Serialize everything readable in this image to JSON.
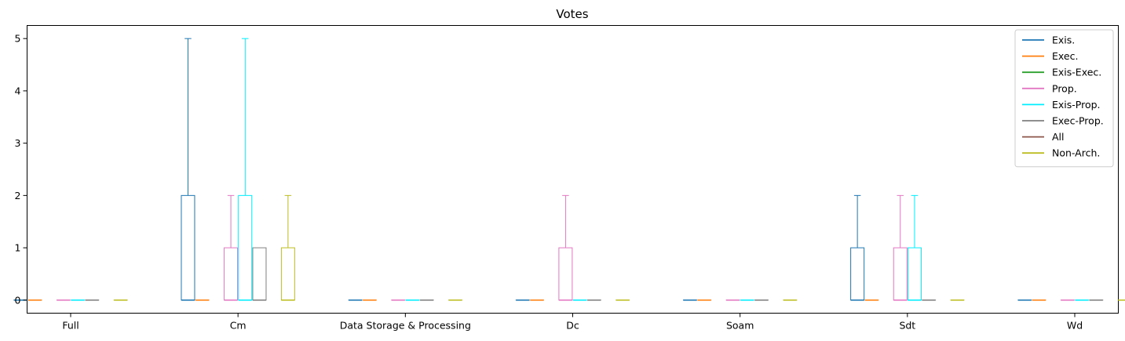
{
  "chart_data": {
    "type": "boxplot",
    "title": "Votes",
    "xlabel": "",
    "ylabel": "",
    "categories": [
      "Full",
      "Cm",
      "Data Storage & Processing",
      "Dc",
      "Soam",
      "Sdt",
      "Wd"
    ],
    "ylim": [
      -0.25,
      5.25
    ],
    "yticks": [
      0,
      1,
      2,
      3,
      4,
      5
    ],
    "grid": false,
    "legend_position": "top-right",
    "series": [
      {
        "name": "Exis.",
        "color": "#1f77b4",
        "boxes": [
          {
            "min": 0,
            "q1": 0,
            "median": 0,
            "q3": 0,
            "max": 0
          },
          {
            "min": 0,
            "q1": 0,
            "median": 0,
            "q3": 2,
            "max": 5
          },
          {
            "min": 0,
            "q1": 0,
            "median": 0,
            "q3": 0,
            "max": 0
          },
          {
            "min": 0,
            "q1": 0,
            "median": 0,
            "q3": 0,
            "max": 0
          },
          {
            "min": 0,
            "q1": 0,
            "median": 0,
            "q3": 0,
            "max": 0
          },
          {
            "min": 0,
            "q1": 0,
            "median": 0,
            "q3": 1,
            "max": 2
          },
          {
            "min": 0,
            "q1": 0,
            "median": 0,
            "q3": 0,
            "max": 0
          }
        ]
      },
      {
        "name": "Exec.",
        "color": "#ff7f0e",
        "boxes": [
          {
            "min": 0,
            "q1": 0,
            "median": 0,
            "q3": 0,
            "max": 0
          },
          {
            "min": 0,
            "q1": 0,
            "median": 0,
            "q3": 0,
            "max": 0
          },
          {
            "min": 0,
            "q1": 0,
            "median": 0,
            "q3": 0,
            "max": 0
          },
          {
            "min": 0,
            "q1": 0,
            "median": 0,
            "q3": 0,
            "max": 0
          },
          {
            "min": 0,
            "q1": 0,
            "median": 0,
            "q3": 0,
            "max": 0
          },
          {
            "min": 0,
            "q1": 0,
            "median": 0,
            "q3": 0,
            "max": 0
          },
          {
            "min": 0,
            "q1": 0,
            "median": 0,
            "q3": 0,
            "max": 0
          }
        ]
      },
      {
        "name": "Exis-Exec.",
        "color": "#2ca02c",
        "boxes": []
      },
      {
        "name": "Prop.",
        "color": "#e377c2",
        "boxes": [
          {
            "min": 0,
            "q1": 0,
            "median": 0,
            "q3": 0,
            "max": 0
          },
          {
            "min": 0,
            "q1": 0,
            "median": 0,
            "q3": 1,
            "max": 2
          },
          {
            "min": 0,
            "q1": 0,
            "median": 0,
            "q3": 0,
            "max": 0
          },
          {
            "min": 0,
            "q1": 0,
            "median": 0,
            "q3": 1,
            "max": 2
          },
          {
            "min": 0,
            "q1": 0,
            "median": 0,
            "q3": 0,
            "max": 0
          },
          {
            "min": 0,
            "q1": 0,
            "median": 0,
            "q3": 1,
            "max": 2
          },
          {
            "min": 0,
            "q1": 0,
            "median": 0,
            "q3": 0,
            "max": 0
          }
        ]
      },
      {
        "name": "Exis-Prop.",
        "color": "#00eeff",
        "boxes": [
          {
            "min": 0,
            "q1": 0,
            "median": 0,
            "q3": 0,
            "max": 0
          },
          {
            "min": 0,
            "q1": 0,
            "median": 0,
            "q3": 2,
            "max": 5
          },
          {
            "min": 0,
            "q1": 0,
            "median": 0,
            "q3": 0,
            "max": 0
          },
          {
            "min": 0,
            "q1": 0,
            "median": 0,
            "q3": 0,
            "max": 0
          },
          {
            "min": 0,
            "q1": 0,
            "median": 0,
            "q3": 0,
            "max": 0
          },
          {
            "min": 0,
            "q1": 0,
            "median": 0,
            "q3": 1,
            "max": 2
          },
          {
            "min": 0,
            "q1": 0,
            "median": 0,
            "q3": 0,
            "max": 0
          }
        ]
      },
      {
        "name": "Exec-Prop.",
        "color": "#7f7f7f",
        "boxes": [
          {
            "min": 0,
            "q1": 0,
            "median": 0,
            "q3": 0,
            "max": 0
          },
          {
            "min": 0,
            "q1": 0,
            "median": 0,
            "q3": 1,
            "max": 1
          },
          {
            "min": 0,
            "q1": 0,
            "median": 0,
            "q3": 0,
            "max": 0
          },
          {
            "min": 0,
            "q1": 0,
            "median": 0,
            "q3": 0,
            "max": 0
          },
          {
            "min": 0,
            "q1": 0,
            "median": 0,
            "q3": 0,
            "max": 0
          },
          {
            "min": 0,
            "q1": 0,
            "median": 0,
            "q3": 0,
            "max": 0
          },
          {
            "min": 0,
            "q1": 0,
            "median": 0,
            "q3": 0,
            "max": 0
          }
        ]
      },
      {
        "name": "All",
        "color": "#8c564b",
        "boxes": []
      },
      {
        "name": "Non-Arch.",
        "color": "#bcbd22",
        "boxes": [
          {
            "min": 0,
            "q1": 0,
            "median": 0,
            "q3": 0,
            "max": 0
          },
          {
            "min": 0,
            "q1": 0,
            "median": 0,
            "q3": 1,
            "max": 2
          },
          {
            "min": 0,
            "q1": 0,
            "median": 0,
            "q3": 0,
            "max": 0
          },
          {
            "min": 0,
            "q1": 0,
            "median": 0,
            "q3": 0,
            "max": 0
          },
          {
            "min": 0,
            "q1": 0,
            "median": 0,
            "q3": 0,
            "max": 0
          },
          {
            "min": 0,
            "q1": 0,
            "median": 0,
            "q3": 0,
            "max": 0
          },
          {
            "min": 0,
            "q1": 0,
            "median": 0,
            "q3": 0,
            "max": 0
          }
        ]
      }
    ]
  }
}
